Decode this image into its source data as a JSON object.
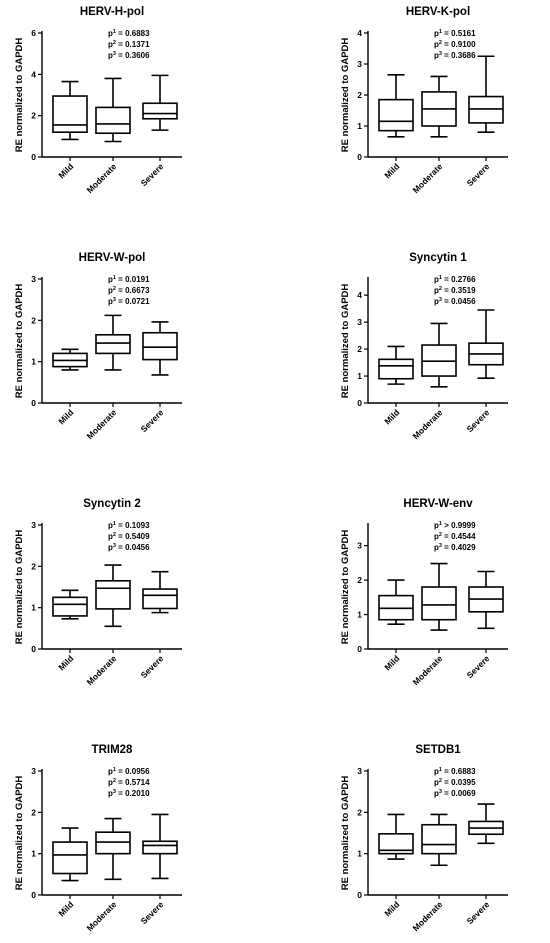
{
  "chart_data": [
    {
      "type": "box",
      "title": "HERV-H-pol",
      "ylabel": "RE normalized to GAPDH",
      "ylim": [
        0,
        6
      ],
      "yticks": [
        0,
        2,
        4,
        6
      ],
      "categories": [
        "Mild",
        "Moderate",
        "Severe"
      ],
      "boxes": [
        {
          "min": 0.85,
          "q1": 1.2,
          "median": 1.55,
          "q3": 2.95,
          "max": 3.65
        },
        {
          "min": 0.75,
          "q1": 1.15,
          "median": 1.6,
          "q3": 2.4,
          "max": 3.8
        },
        {
          "min": 1.3,
          "q1": 1.85,
          "median": 2.1,
          "q3": 2.6,
          "max": 3.95
        }
      ],
      "pvalues": [
        {
          "sup": "1",
          "op": "=",
          "val": "0.6883"
        },
        {
          "sup": "2",
          "op": "=",
          "val": "0.1371"
        },
        {
          "sup": "3",
          "op": "=",
          "val": "0.3606"
        }
      ]
    },
    {
      "type": "box",
      "title": "HERV-K-pol",
      "ylabel": "RE normalized to GAPDH",
      "ylim": [
        0,
        4
      ],
      "yticks": [
        0,
        1,
        2,
        3,
        4
      ],
      "categories": [
        "Mild",
        "Moderate",
        "Severe"
      ],
      "boxes": [
        {
          "min": 0.65,
          "q1": 0.85,
          "median": 1.15,
          "q3": 1.85,
          "max": 2.65
        },
        {
          "min": 0.65,
          "q1": 1.0,
          "median": 1.55,
          "q3": 2.1,
          "max": 2.6
        },
        {
          "min": 0.8,
          "q1": 1.1,
          "median": 1.55,
          "q3": 1.95,
          "max": 3.25
        }
      ],
      "pvalues": [
        {
          "sup": "1",
          "op": "=",
          "val": "0.5161"
        },
        {
          "sup": "2",
          "op": "=",
          "val": "0.9100"
        },
        {
          "sup": "3",
          "op": "=",
          "val": "0.3686"
        }
      ]
    },
    {
      "type": "box",
      "title": "HERV-W-pol",
      "ylabel": "RE normalized to GAPDH",
      "ylim": [
        0,
        3
      ],
      "yticks": [
        0,
        1,
        2,
        3
      ],
      "categories": [
        "Mild",
        "Moderate",
        "Severe"
      ],
      "boxes": [
        {
          "min": 0.8,
          "q1": 0.88,
          "median": 1.03,
          "q3": 1.2,
          "max": 1.3
        },
        {
          "min": 0.8,
          "q1": 1.2,
          "median": 1.45,
          "q3": 1.65,
          "max": 2.12
        },
        {
          "min": 0.68,
          "q1": 1.05,
          "median": 1.35,
          "q3": 1.7,
          "max": 1.96
        }
      ],
      "pvalues": [
        {
          "sup": "1",
          "op": "=",
          "val": "0.0191"
        },
        {
          "sup": "2",
          "op": "=",
          "val": "0.6673"
        },
        {
          "sup": "3",
          "op": "=",
          "val": "0.0721"
        }
      ]
    },
    {
      "type": "box",
      "title": "Syncytin 1",
      "ylabel": "RE normalized to GAPDH",
      "ylim": [
        0,
        4.6
      ],
      "yticks": [
        0,
        1,
        2,
        3,
        4
      ],
      "categories": [
        "Mild",
        "Moderate",
        "Severe"
      ],
      "boxes": [
        {
          "min": 0.7,
          "q1": 0.9,
          "median": 1.38,
          "q3": 1.62,
          "max": 2.1
        },
        {
          "min": 0.6,
          "q1": 1.0,
          "median": 1.55,
          "q3": 2.15,
          "max": 2.95
        },
        {
          "min": 0.92,
          "q1": 1.42,
          "median": 1.82,
          "q3": 2.22,
          "max": 3.45
        }
      ],
      "pvalues": [
        {
          "sup": "1",
          "op": "=",
          "val": "0.2766"
        },
        {
          "sup": "2",
          "op": "=",
          "val": "0.3519"
        },
        {
          "sup": "3",
          "op": "=",
          "val": "0.0456"
        }
      ]
    },
    {
      "type": "box",
      "title": "Syncytin 2",
      "ylabel": "RE normalized to GAPDH",
      "ylim": [
        0,
        3
      ],
      "yticks": [
        0,
        1,
        2,
        3
      ],
      "categories": [
        "Mild",
        "Moderate",
        "Severe"
      ],
      "boxes": [
        {
          "min": 0.73,
          "q1": 0.8,
          "median": 1.08,
          "q3": 1.25,
          "max": 1.42
        },
        {
          "min": 0.55,
          "q1": 0.97,
          "median": 1.47,
          "q3": 1.65,
          "max": 2.03
        },
        {
          "min": 0.88,
          "q1": 0.98,
          "median": 1.3,
          "q3": 1.45,
          "max": 1.87
        }
      ],
      "pvalues": [
        {
          "sup": "1",
          "op": "=",
          "val": "0.1093"
        },
        {
          "sup": "2",
          "op": "=",
          "val": "0.5409"
        },
        {
          "sup": "3",
          "op": "=",
          "val": "0.0456"
        }
      ]
    },
    {
      "type": "box",
      "title": "HERV-W-env",
      "ylabel": "RE normalized to GAPDH",
      "ylim": [
        0,
        3.6
      ],
      "yticks": [
        0,
        1,
        2,
        3
      ],
      "categories": [
        "Mild",
        "Moderate",
        "Severe"
      ],
      "boxes": [
        {
          "min": 0.72,
          "q1": 0.85,
          "median": 1.18,
          "q3": 1.55,
          "max": 2.0
        },
        {
          "min": 0.55,
          "q1": 0.85,
          "median": 1.28,
          "q3": 1.8,
          "max": 2.48
        },
        {
          "min": 0.6,
          "q1": 1.08,
          "median": 1.45,
          "q3": 1.8,
          "max": 2.25
        }
      ],
      "pvalues": [
        {
          "sup": "1",
          "op": ">",
          "val": "0.9999"
        },
        {
          "sup": "2",
          "op": "=",
          "val": "0.4544"
        },
        {
          "sup": "3",
          "op": "=",
          "val": "0.4029"
        }
      ]
    },
    {
      "type": "box",
      "title": "TRIM28",
      "ylabel": "RE normalized to GAPDH",
      "ylim": [
        0,
        3
      ],
      "yticks": [
        0,
        1,
        2,
        3
      ],
      "categories": [
        "Mild",
        "Moderate",
        "Severe"
      ],
      "boxes": [
        {
          "min": 0.35,
          "q1": 0.52,
          "median": 0.97,
          "q3": 1.28,
          "max": 1.62
        },
        {
          "min": 0.38,
          "q1": 1.0,
          "median": 1.28,
          "q3": 1.52,
          "max": 1.85
        },
        {
          "min": 0.4,
          "q1": 1.0,
          "median": 1.2,
          "q3": 1.3,
          "max": 1.95
        }
      ],
      "pvalues": [
        {
          "sup": "1",
          "op": "=",
          "val": "0.0956"
        },
        {
          "sup": "2",
          "op": "=",
          "val": "0.5714"
        },
        {
          "sup": "3",
          "op": "=",
          "val": "0.2010"
        }
      ]
    },
    {
      "type": "box",
      "title": "SETDB1",
      "ylabel": "RE normalized to GAPDH",
      "ylim": [
        0,
        3
      ],
      "yticks": [
        0,
        1,
        2,
        3
      ],
      "categories": [
        "Mild",
        "Moderate",
        "Severe"
      ],
      "boxes": [
        {
          "min": 0.87,
          "q1": 1.0,
          "median": 1.08,
          "q3": 1.48,
          "max": 1.95
        },
        {
          "min": 0.72,
          "q1": 1.0,
          "median": 1.22,
          "q3": 1.7,
          "max": 1.95
        },
        {
          "min": 1.25,
          "q1": 1.47,
          "median": 1.62,
          "q3": 1.78,
          "max": 2.2
        }
      ],
      "pvalues": [
        {
          "sup": "1",
          "op": "=",
          "val": "0.6883"
        },
        {
          "sup": "2",
          "op": "=",
          "val": "0.0395"
        },
        {
          "sup": "3",
          "op": "=",
          "val": "0.0069"
        }
      ]
    }
  ]
}
